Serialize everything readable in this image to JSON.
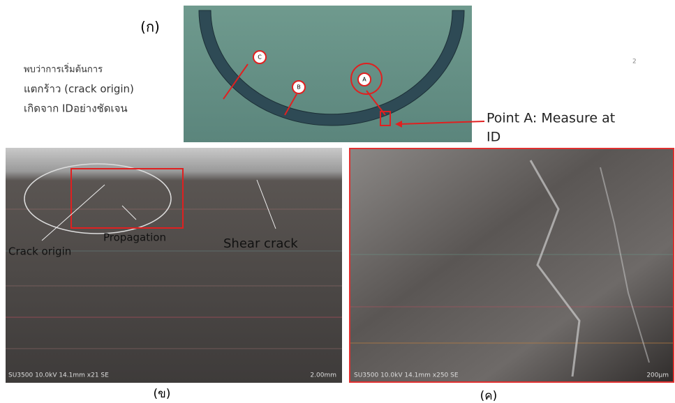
{
  "figure_a": {
    "label": "(ก)",
    "note_lines": [
      "พบว่าการเริ่มต้นการ",
      "แตกร้าว (crack origin)",
      "เกิดจาก IDอย่างชัดเจน"
    ],
    "markers": [
      "A",
      "B",
      "C"
    ],
    "callout": [
      "Point A: Measure at",
      "ID"
    ]
  },
  "page_number": "2",
  "figure_b": {
    "annotations": [
      "Crack origin",
      "Propagation",
      "Shear crack"
    ],
    "info": "SU3500 10.0kV 14.1mm x21 SE",
    "scale": "2.00mm",
    "label": "(ข)"
  },
  "figure_c": {
    "info": "SU3500 10.0kV 14.1mm x250 SE",
    "scale": "200μm",
    "label": "(ค)"
  }
}
